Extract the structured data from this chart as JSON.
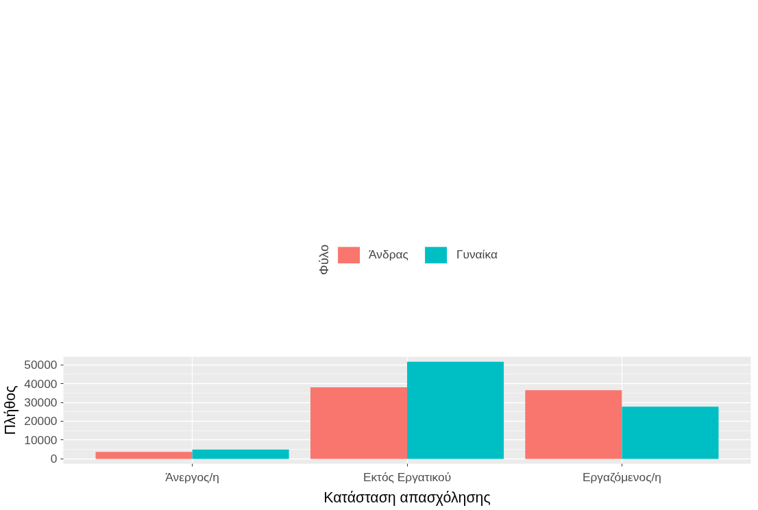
{
  "chart_data": {
    "type": "bar",
    "xlabel": "Κατάσταση απασχόλησης",
    "ylabel": "Πλήθος",
    "legend_title": "Φύλο",
    "categories": [
      "Άνεργος/η",
      "Εκτός Εργατικού",
      "Εργαζόμενος/η"
    ],
    "series": [
      {
        "name": "Άνδρας",
        "color": "#f8766d",
        "values": [
          3700,
          38000,
          36500
        ]
      },
      {
        "name": "Γυναίκα",
        "color": "#00bfc4",
        "values": [
          5000,
          51600,
          27700
        ]
      }
    ],
    "ylim": [
      -2580,
      54230
    ],
    "yticks": [
      0,
      10000,
      20000,
      30000,
      40000,
      50000
    ],
    "grid": true,
    "legend": "top"
  }
}
